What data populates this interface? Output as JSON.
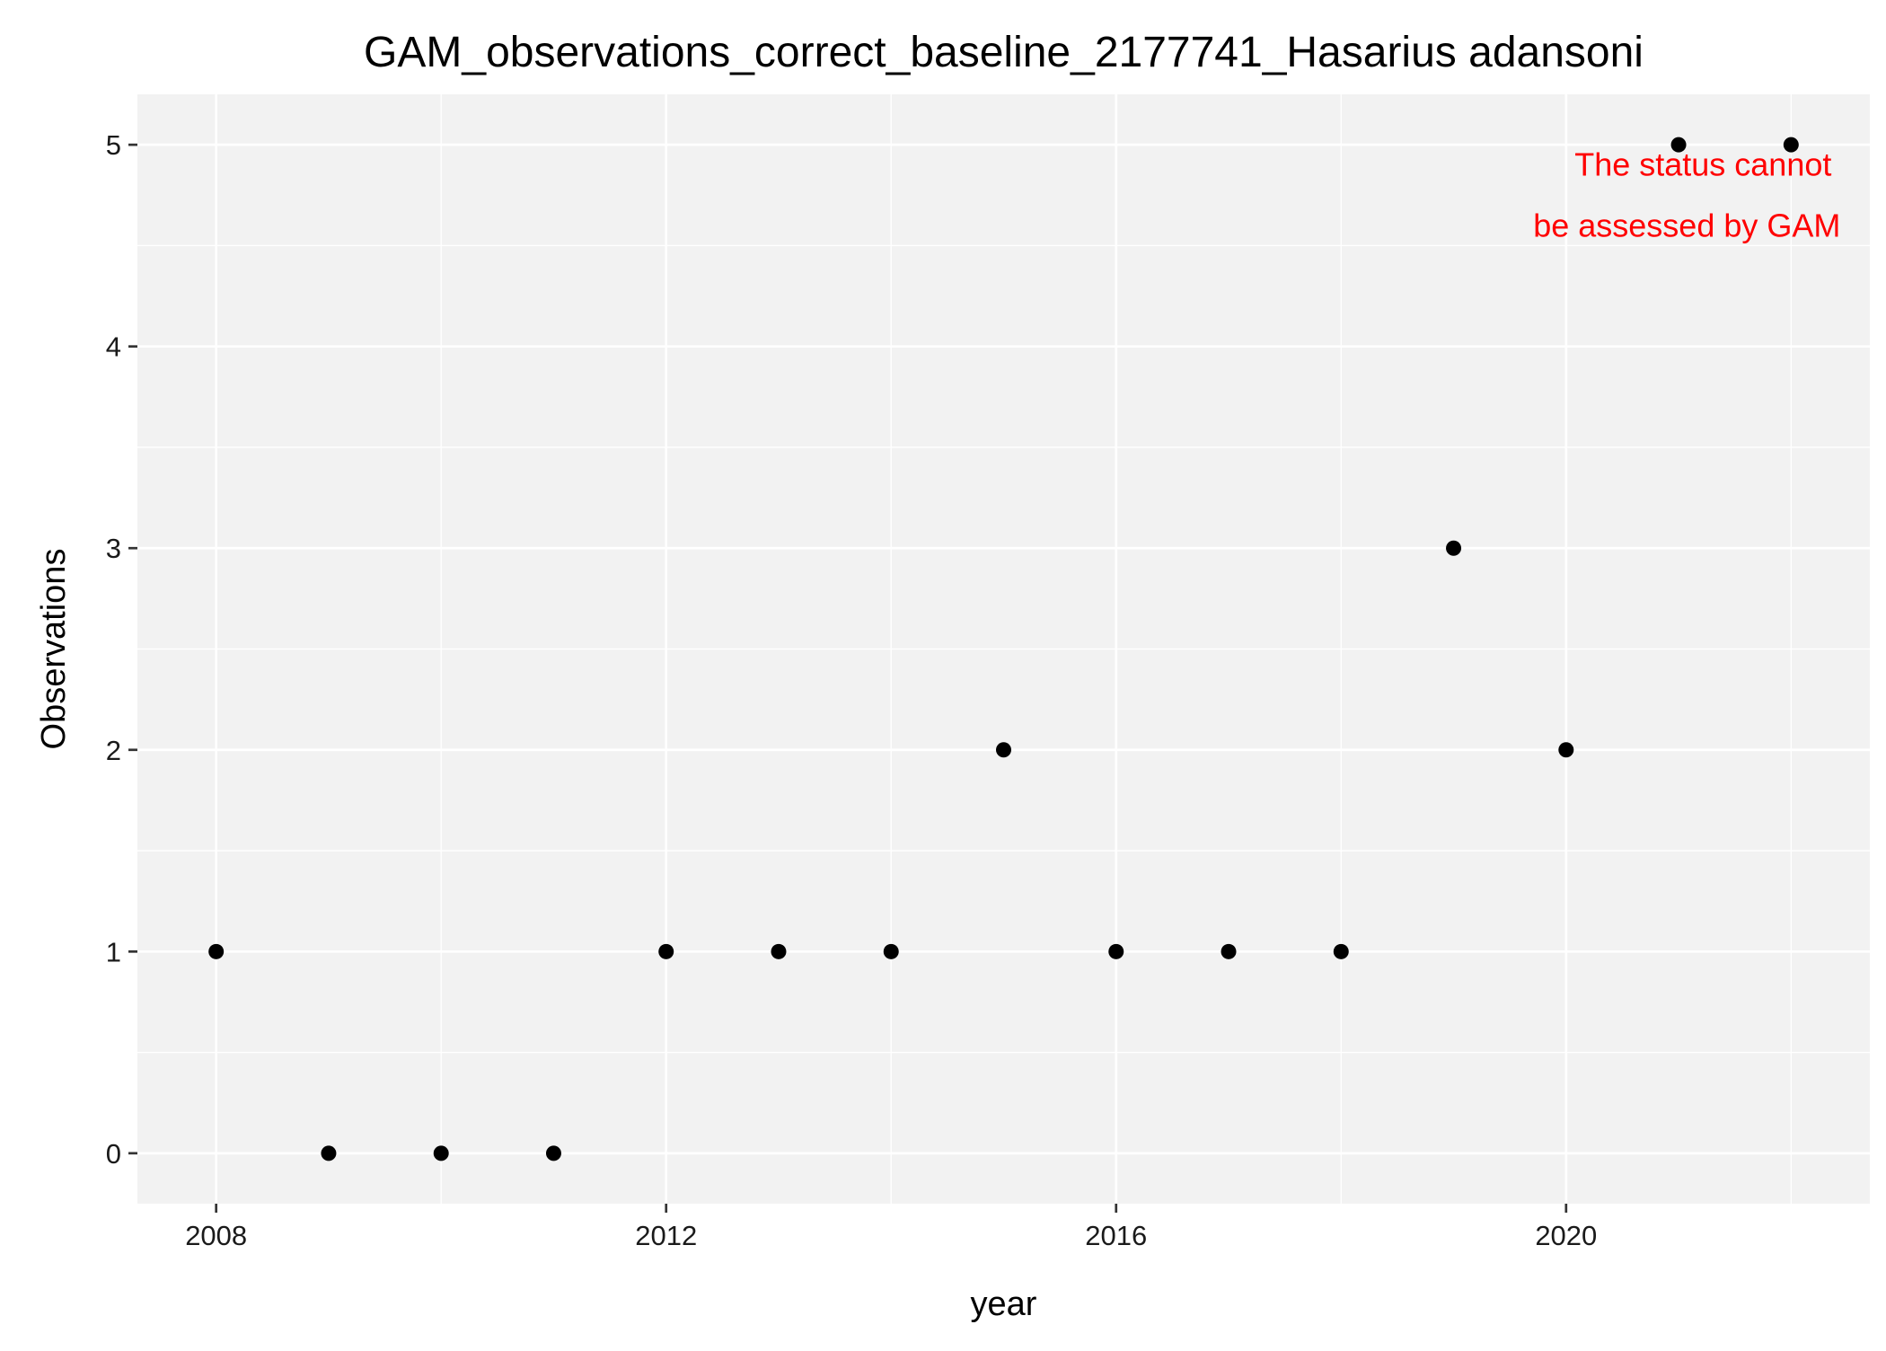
{
  "chart_data": {
    "type": "scatter",
    "title": "GAM_observations_correct_baseline_2177741_Hasarius adansoni",
    "xlabel": "year",
    "ylabel": "Observations",
    "x": [
      2008,
      2009,
      2010,
      2011,
      2012,
      2013,
      2014,
      2015,
      2016,
      2017,
      2018,
      2019,
      2020,
      2021,
      2022
    ],
    "y": [
      1,
      0,
      0,
      0,
      1,
      1,
      1,
      2,
      1,
      1,
      1,
      3,
      2,
      5,
      5
    ],
    "xlim": [
      2007.3,
      2022.7
    ],
    "ylim": [
      -0.25,
      5.25
    ],
    "x_ticks": [
      2008,
      2012,
      2016,
      2020
    ],
    "y_ticks": [
      0,
      1,
      2,
      3,
      4,
      5
    ],
    "x_tick_labels": [
      "2008",
      "2012",
      "2016",
      "2020"
    ],
    "y_tick_labels": [
      "0",
      "1",
      "2",
      "3",
      "4",
      "5"
    ],
    "grid": true,
    "annotation": {
      "lines": [
        "The status cannot",
        "be assessed by GAM"
      ],
      "x": 2020.3,
      "y": 4.9,
      "color": "#ff0000"
    },
    "colors": {
      "panel_background": "#f2f2f2",
      "grid_major": "#ffffff",
      "grid_minor": "#ffffff",
      "point": "#000000",
      "tick_mark": "#333333"
    }
  }
}
